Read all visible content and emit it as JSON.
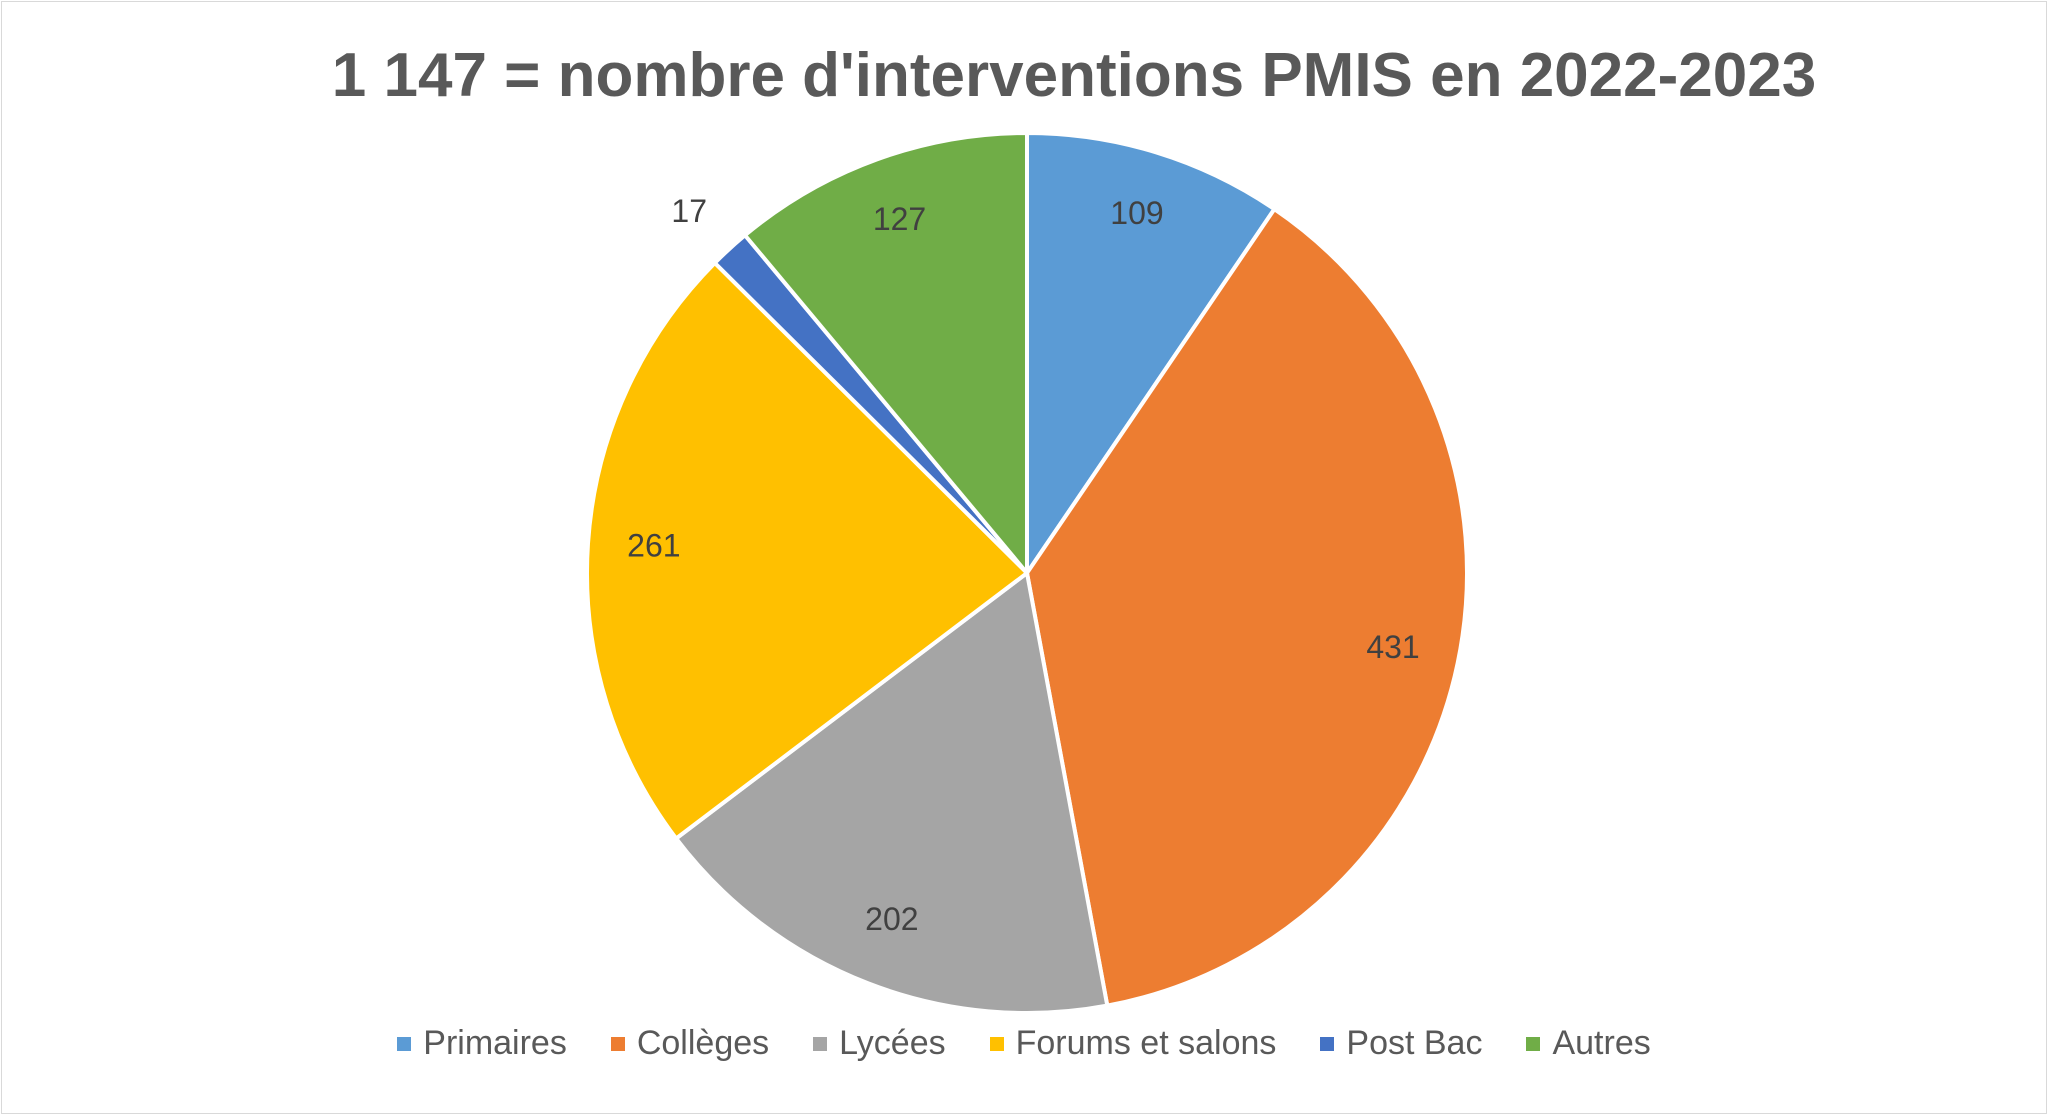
{
  "chart_data": {
    "type": "pie",
    "title": "1 147 = nombre d'interventions PMIS en 2022-2023",
    "categories": [
      "Primaires",
      "Collèges",
      "Lycées",
      "Forums et salons",
      "Post Bac",
      "Autres"
    ],
    "values": [
      109,
      431,
      202,
      261,
      17,
      127
    ],
    "colors": [
      "#5b9bd5",
      "#ed7d31",
      "#a5a5a5",
      "#ffc000",
      "#4472c4",
      "#70ad47"
    ],
    "data_labels": [
      "109",
      "431",
      "202",
      "261",
      "17",
      "127"
    ],
    "legend_position": "bottom",
    "start_angle": "12 o'clock",
    "direction": "clockwise"
  }
}
